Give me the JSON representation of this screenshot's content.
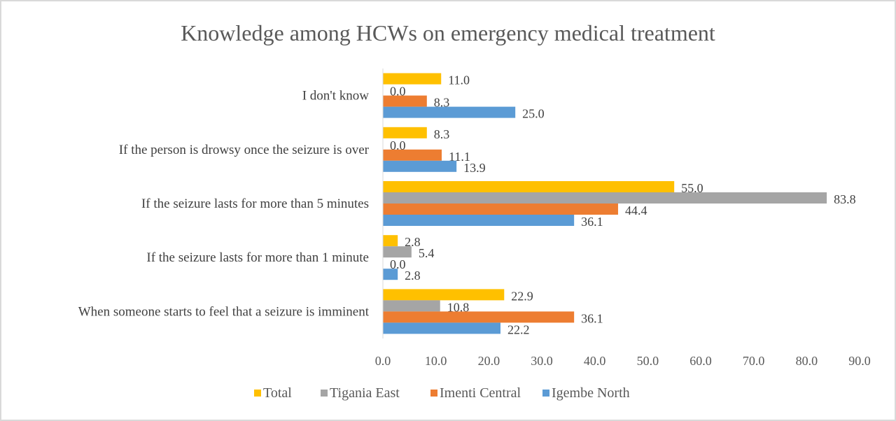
{
  "chart_data": {
    "type": "bar",
    "orientation": "horizontal",
    "title": "Knowledge among HCWs on emergency medical treatment",
    "categories": [
      "When someone starts to feel that a seizure is imminent",
      "If the seizure lasts for more than 1 minute",
      "If the seizure lasts for more than 5 minutes",
      "If the person is drowsy once the seizure is over",
      "I don't know"
    ],
    "series": [
      {
        "name": "Total",
        "color": "#ffc000",
        "values": [
          22.9,
          2.8,
          55.0,
          8.3,
          11.0
        ],
        "labels": [
          "22.9",
          "2.8",
          "55.0",
          "8.3",
          "11.0"
        ]
      },
      {
        "name": "Tigania East",
        "color": "#a5a5a5",
        "values": [
          10.8,
          5.4,
          83.8,
          0.0,
          0.0
        ],
        "labels": [
          "10.8",
          "5.4",
          "83.8",
          "0.0",
          "0.0"
        ]
      },
      {
        "name": "Imenti Central",
        "color": "#ed7d31",
        "values": [
          36.1,
          0.0,
          44.4,
          11.1,
          8.3
        ],
        "labels": [
          "36.1",
          "0.0",
          "44.4",
          "11.1",
          "8.3"
        ]
      },
      {
        "name": "Igembe North",
        "color": "#5b9bd5",
        "values": [
          22.2,
          2.8,
          36.1,
          13.9,
          25.0
        ],
        "labels": [
          "22.2",
          "2.8",
          "36.1",
          "13.9",
          "25.0"
        ]
      }
    ],
    "xlim": [
      0,
      90
    ],
    "xticks": [
      "0.0",
      "10.0",
      "20.0",
      "30.0",
      "40.0",
      "50.0",
      "60.0",
      "70.0",
      "80.0",
      "90.0"
    ],
    "legend_position": "bottom",
    "grid": false
  }
}
